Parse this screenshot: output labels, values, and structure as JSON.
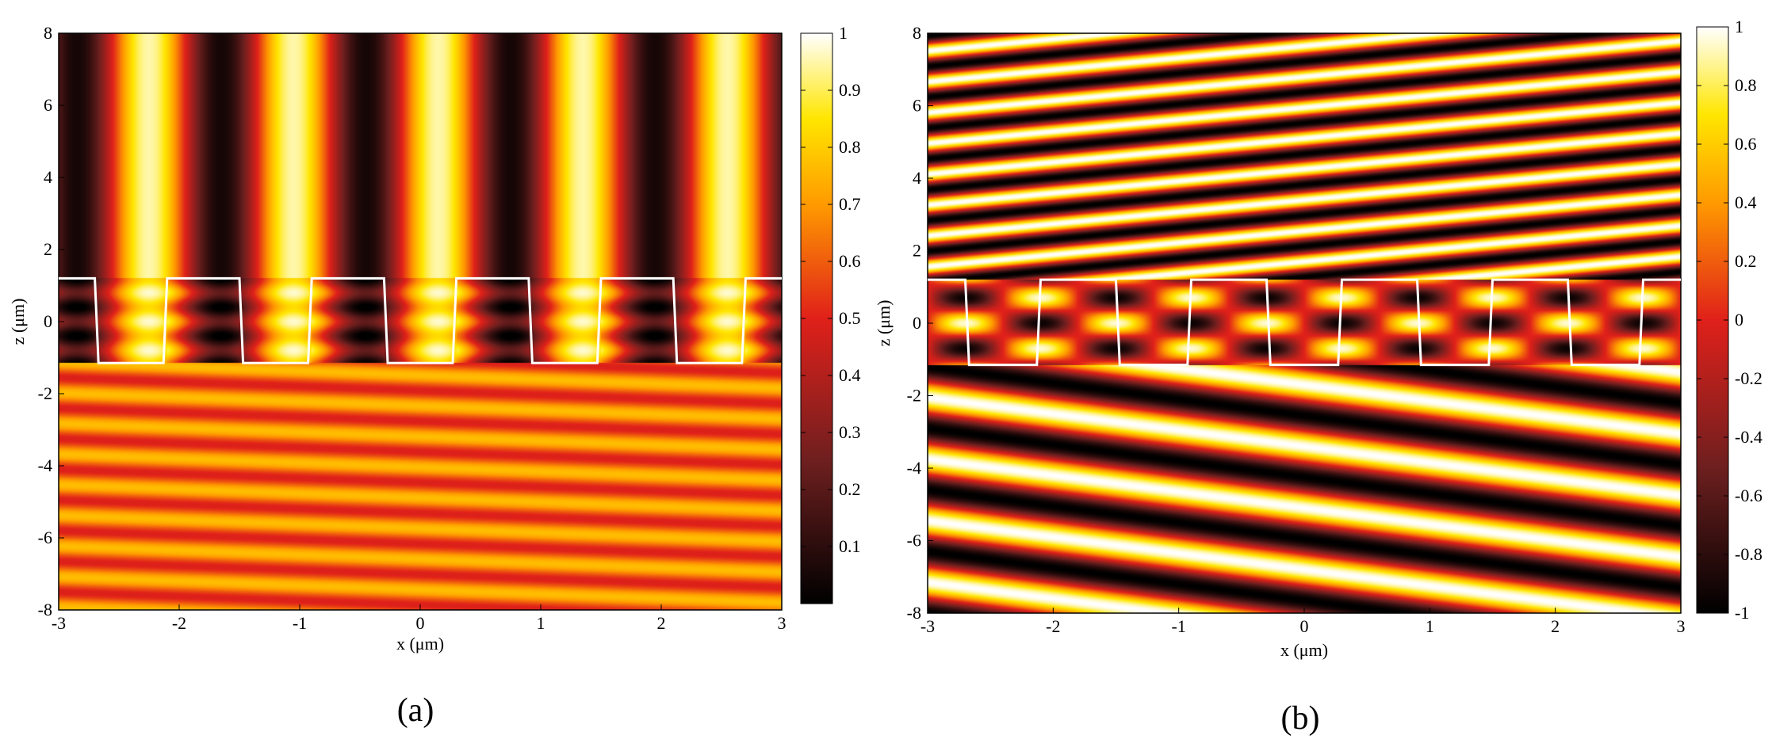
{
  "chart_data": [
    {
      "type": "heatmap",
      "panel_label": "(a)",
      "xlabel": "x (μm)",
      "ylabel": "z (μm)",
      "xlim": [
        -3,
        3
      ],
      "ylim": [
        -8,
        8
      ],
      "x_ticks": [
        "-3",
        "-2",
        "-1",
        "0",
        "1",
        "2",
        "3"
      ],
      "y_ticks": [
        "8",
        "6",
        "4",
        "2",
        "0",
        "-2",
        "-4",
        "-6",
        "-8"
      ],
      "colorbar": {
        "range": [
          0,
          1
        ],
        "ticks": [
          "1",
          "0.9",
          "0.8",
          "0.7",
          "0.6",
          "0.5",
          "0.4",
          "0.3",
          "0.2",
          "0.1"
        ]
      },
      "field": "standing",
      "grating": {
        "z_top": 1.2,
        "z_bottom": -1.15,
        "period": 1.2,
        "ridges": [
          [
            -3.0,
            -2.7
          ],
          [
            -2.1,
            -1.5
          ],
          [
            -0.9,
            -0.3
          ],
          [
            0.3,
            0.9
          ],
          [
            1.5,
            2.1
          ],
          [
            2.7,
            3.0
          ]
        ]
      }
    },
    {
      "type": "heatmap",
      "panel_label": "(b)",
      "xlabel": "x (μm)",
      "ylabel": "z (μm)",
      "xlim": [
        -3,
        3
      ],
      "ylim": [
        -8,
        8
      ],
      "x_ticks": [
        "-3",
        "-2",
        "-1",
        "0",
        "1",
        "2",
        "3"
      ],
      "y_ticks": [
        "8",
        "6",
        "4",
        "2",
        "0",
        "-2",
        "-4",
        "-6",
        "-8"
      ],
      "colorbar": {
        "range": [
          -1,
          1
        ],
        "ticks": [
          "1",
          "0.8",
          "0.6",
          "0.4",
          "0.2",
          "0",
          "-0.2",
          "-0.4",
          "-0.6",
          "-0.8",
          "-1"
        ]
      },
      "field": "tilted",
      "grating": {
        "z_top": 1.2,
        "z_bottom": -1.15,
        "period": 1.2,
        "ridges": [
          [
            -3.0,
            -2.7
          ],
          [
            -2.1,
            -1.5
          ],
          [
            -0.9,
            -0.3
          ],
          [
            0.3,
            0.9
          ],
          [
            1.5,
            2.1
          ],
          [
            2.7,
            3.0
          ]
        ]
      }
    }
  ]
}
